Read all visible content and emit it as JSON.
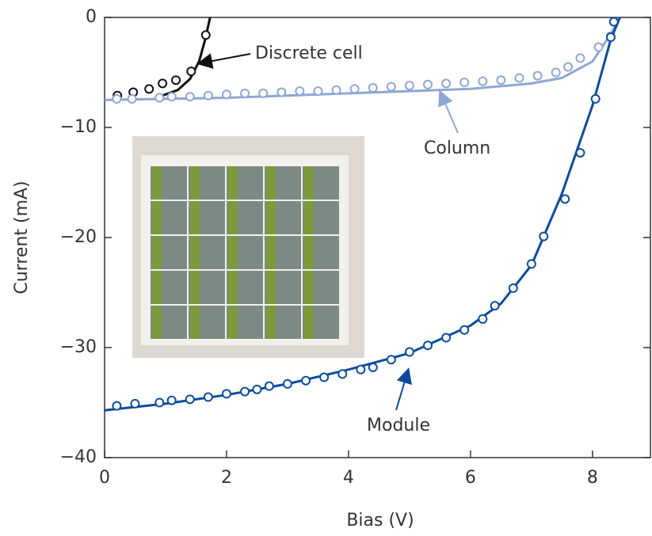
{
  "chart_data": {
    "type": "line",
    "x_label": "Bias (V)",
    "y_label": "Current (mA)",
    "xlim": [
      0,
      8.95
    ],
    "ylim": [
      -40,
      0
    ],
    "xticks": [
      0,
      2,
      4,
      6,
      8
    ],
    "yticks": [
      0,
      {
        "value": -10,
        "label": "−10"
      },
      {
        "value": -20,
        "label": "−20"
      },
      {
        "value": -30,
        "label": "−30"
      },
      {
        "value": -40,
        "label": "−40"
      }
    ],
    "series": [
      {
        "name": "Discrete cell",
        "color": "#111111",
        "fit": {
          "x": [
            0.9,
            1.2,
            1.4,
            1.55,
            1.65,
            1.73
          ],
          "values": [
            -7.2,
            -6.6,
            -5.6,
            -4.0,
            -2.0,
            0
          ]
        },
        "measured": {
          "x": [
            0.21,
            0.47,
            0.73,
            0.95,
            1.17,
            1.42,
            1.66
          ],
          "values": [
            -7.1,
            -6.8,
            -6.5,
            -6.0,
            -5.7,
            -4.9,
            -1.6
          ]
        }
      },
      {
        "name": "Column",
        "color": "#8ea7d2",
        "fit": {
          "x": [
            0,
            1,
            2,
            3,
            4,
            5,
            6,
            7,
            7.5,
            8,
            8.3,
            8.45
          ],
          "values": [
            -7.5,
            -7.4,
            -7.3,
            -7.1,
            -6.9,
            -6.7,
            -6.5,
            -6.0,
            -5.5,
            -4.0,
            -1.5,
            0
          ]
        },
        "measured": {
          "x": [
            0.2,
            0.45,
            0.9,
            1.1,
            1.4,
            1.7,
            2.0,
            2.3,
            2.6,
            2.9,
            3.2,
            3.5,
            3.8,
            4.1,
            4.4,
            4.7,
            5.0,
            5.3,
            5.6,
            5.9,
            6.2,
            6.5,
            6.8,
            7.1,
            7.4,
            7.6,
            7.8,
            8.1,
            8.3,
            8.35
          ],
          "values": [
            -7.4,
            -7.4,
            -7.3,
            -7.2,
            -7.2,
            -7.1,
            -7.0,
            -6.9,
            -6.9,
            -6.8,
            -6.7,
            -6.7,
            -6.6,
            -6.5,
            -6.4,
            -6.3,
            -6.2,
            -6.1,
            -6.0,
            -5.9,
            -5.8,
            -5.7,
            -5.5,
            -5.3,
            -5.0,
            -4.5,
            -3.7,
            -2.7,
            -1.7,
            -0.4
          ]
        }
      },
      {
        "name": "Module",
        "color": "#0d4c9c",
        "fit": {
          "x": [
            0,
            1,
            2,
            3,
            4,
            5,
            6,
            6.5,
            7,
            7.5,
            8,
            8.3,
            8.45
          ],
          "values": [
            -35.7,
            -35.1,
            -34.3,
            -33.3,
            -32.0,
            -30.5,
            -28.0,
            -26.0,
            -22.5,
            -16.0,
            -8.0,
            -2.0,
            0
          ]
        },
        "measured": {
          "x": [
            0.2,
            0.5,
            0.9,
            1.1,
            1.4,
            1.7,
            2.0,
            2.3,
            2.5,
            2.7,
            3.0,
            3.3,
            3.6,
            3.9,
            4.2,
            4.4,
            4.7,
            5.0,
            5.3,
            5.6,
            5.9,
            6.2,
            6.4,
            6.7,
            7.0,
            7.2,
            7.55,
            7.8,
            8.05,
            8.3,
            8.35
          ],
          "values": [
            -35.3,
            -35.1,
            -35.0,
            -34.8,
            -34.7,
            -34.5,
            -34.2,
            -34.0,
            -33.8,
            -33.5,
            -33.3,
            -33.0,
            -32.7,
            -32.4,
            -32.0,
            -31.8,
            -31.1,
            -30.4,
            -29.8,
            -29.1,
            -28.4,
            -27.4,
            -26.2,
            -24.6,
            -22.4,
            -19.9,
            -16.5,
            -12.3,
            -7.4,
            -1.8,
            -0.4
          ]
        }
      }
    ]
  }
}
